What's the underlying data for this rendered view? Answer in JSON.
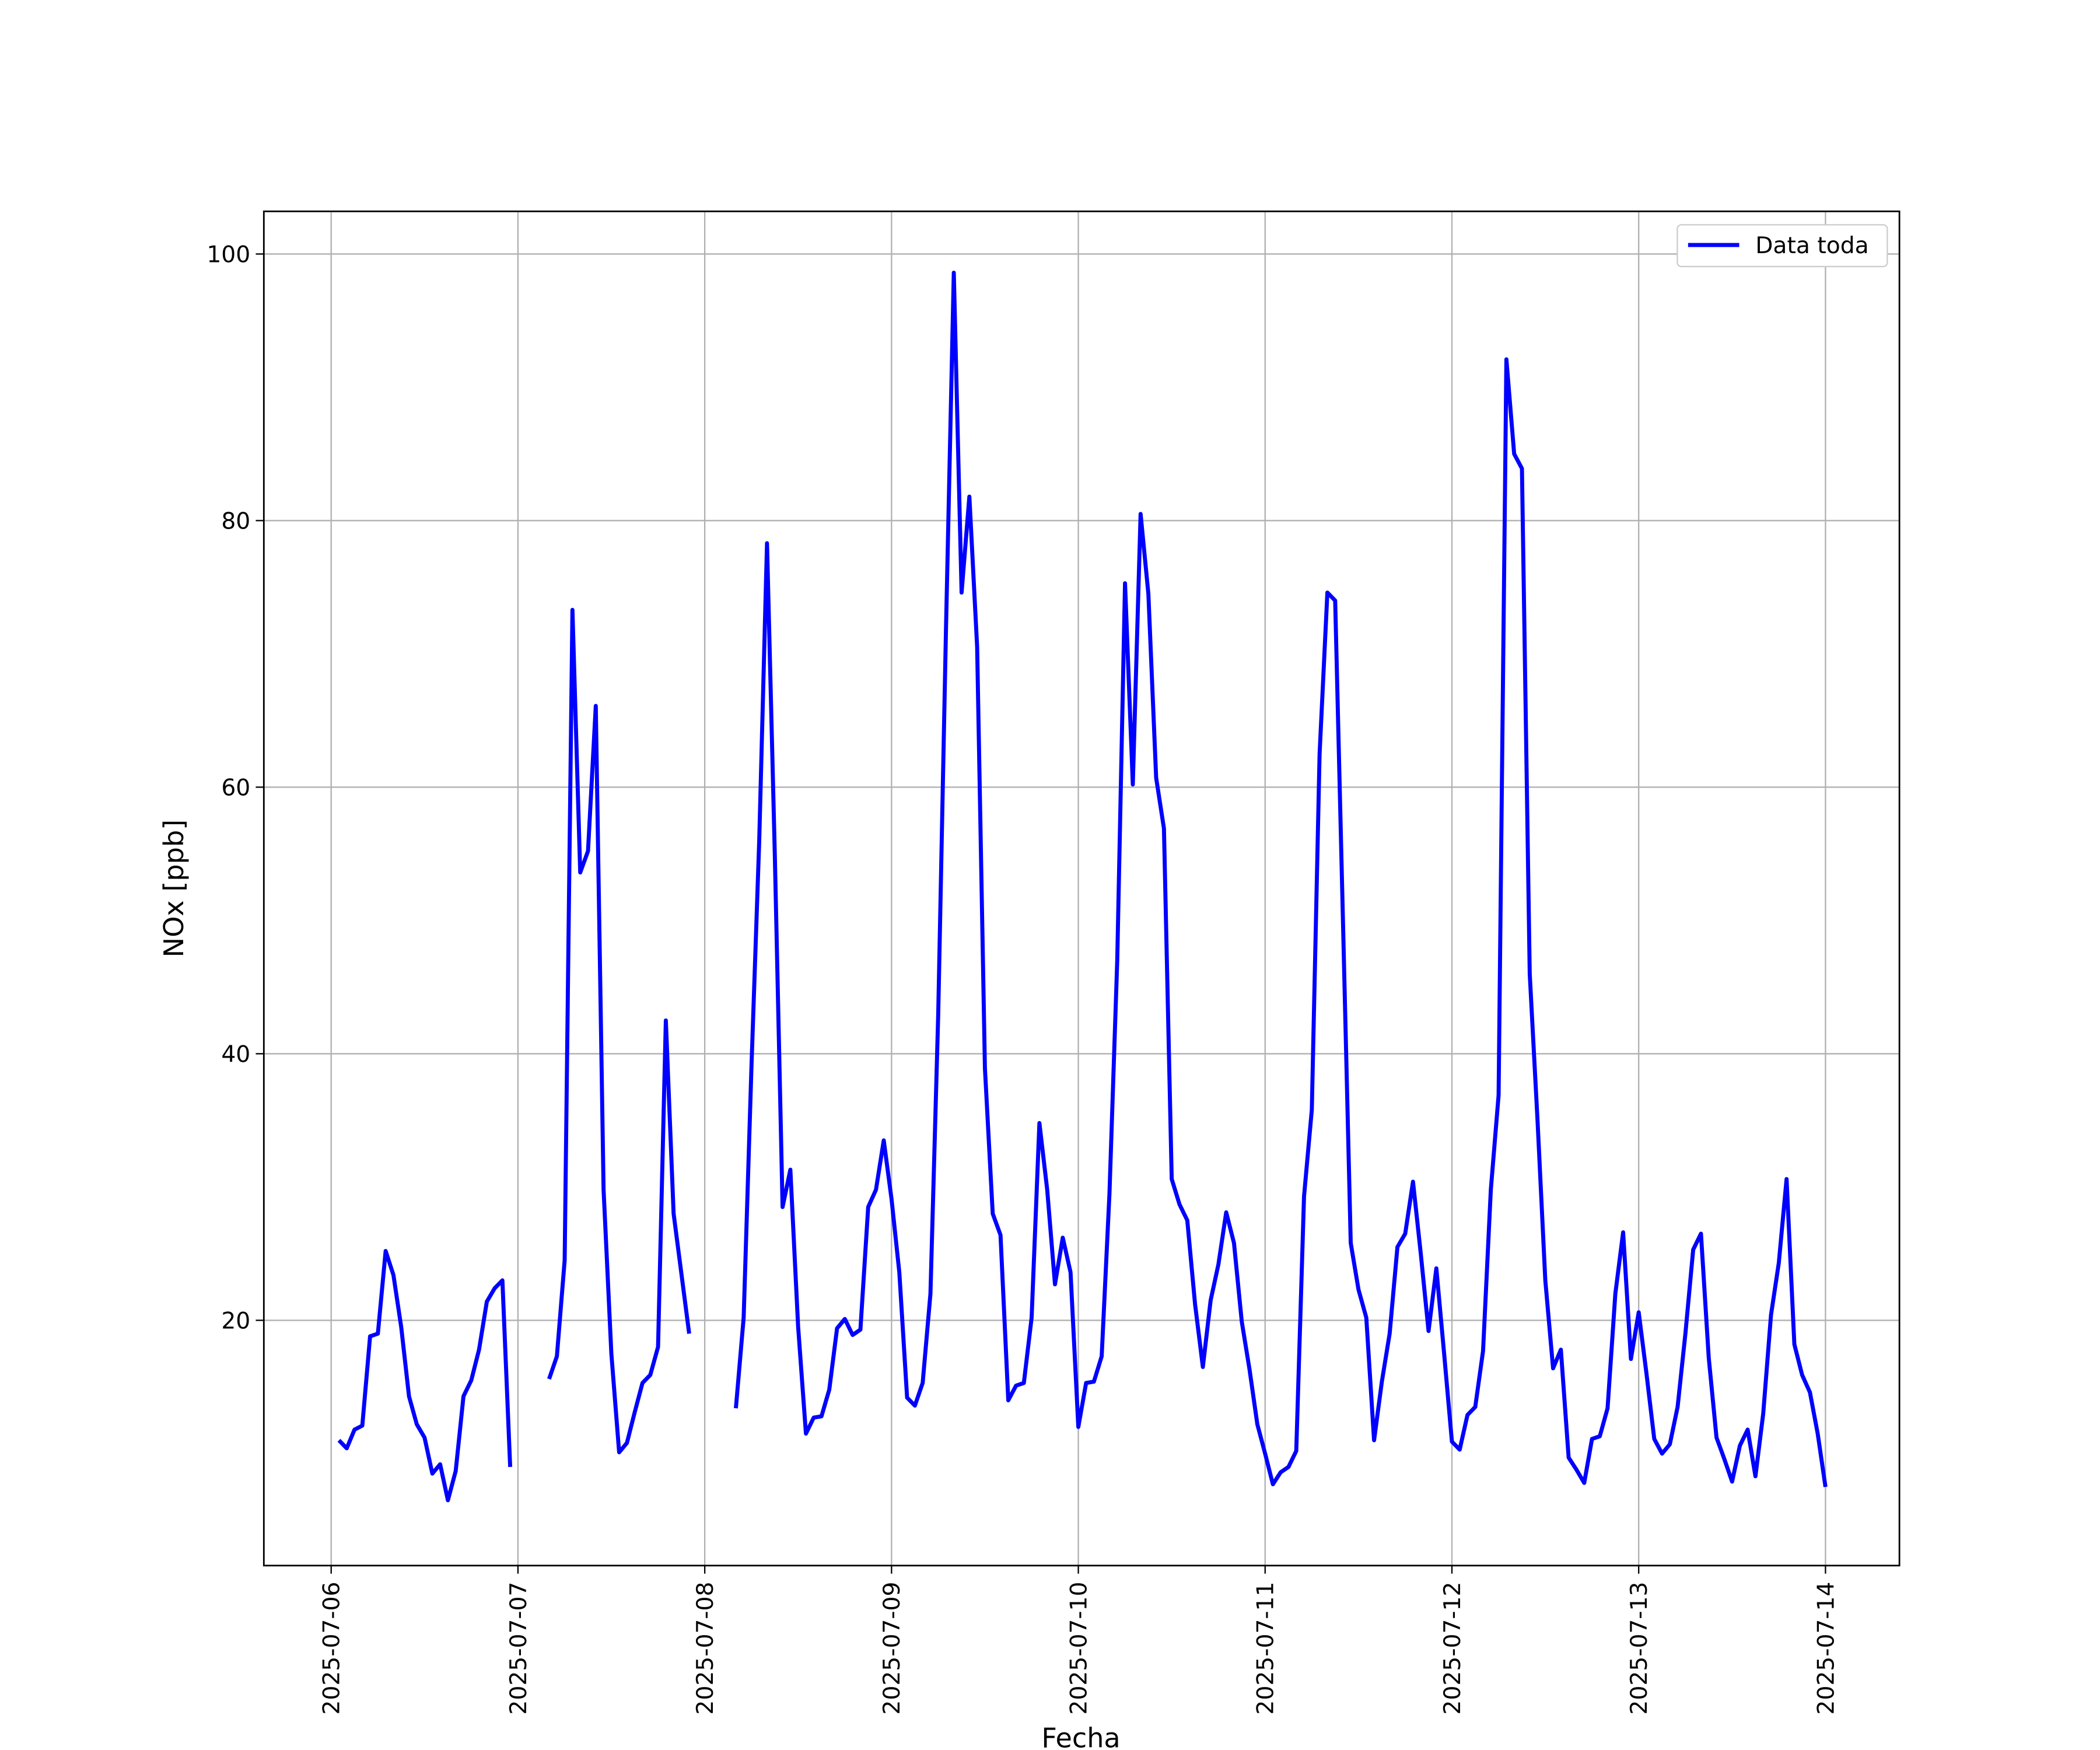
{
  "chart_data": {
    "type": "line",
    "xlabel": "Fecha",
    "ylabel": "NOx [ppb]",
    "x": [
      "2025-07-06 01:00",
      "2025-07-06 02:00",
      "2025-07-06 03:00",
      "2025-07-06 04:00",
      "2025-07-06 05:00",
      "2025-07-06 06:00",
      "2025-07-06 07:00",
      "2025-07-06 08:00",
      "2025-07-06 09:00",
      "2025-07-06 10:00",
      "2025-07-06 11:00",
      "2025-07-06 12:00",
      "2025-07-06 13:00",
      "2025-07-06 14:00",
      "2025-07-06 15:00",
      "2025-07-06 16:00",
      "2025-07-06 17:00",
      "2025-07-06 18:00",
      "2025-07-06 19:00",
      "2025-07-06 20:00",
      "2025-07-06 21:00",
      "2025-07-06 22:00",
      "2025-07-06 23:00",
      "2025-07-07 00:00",
      "2025-07-07 01:00",
      "2025-07-07 02:00",
      "2025-07-07 03:00",
      "2025-07-07 04:00",
      "2025-07-07 05:00",
      "2025-07-07 06:00",
      "2025-07-07 07:00",
      "2025-07-07 08:00",
      "2025-07-07 09:00",
      "2025-07-07 10:00",
      "2025-07-07 11:00",
      "2025-07-07 12:00",
      "2025-07-07 13:00",
      "2025-07-07 14:00",
      "2025-07-07 15:00",
      "2025-07-07 16:00",
      "2025-07-07 17:00",
      "2025-07-07 18:00",
      "2025-07-07 19:00",
      "2025-07-07 20:00",
      "2025-07-07 21:00",
      "2025-07-07 22:00",
      "2025-07-07 23:00",
      "2025-07-08 00:00",
      "2025-07-08 01:00",
      "2025-07-08 02:00",
      "2025-07-08 03:00",
      "2025-07-08 04:00",
      "2025-07-08 05:00",
      "2025-07-08 06:00",
      "2025-07-08 07:00",
      "2025-07-08 08:00",
      "2025-07-08 09:00",
      "2025-07-08 10:00",
      "2025-07-08 11:00",
      "2025-07-08 12:00",
      "2025-07-08 13:00",
      "2025-07-08 14:00",
      "2025-07-08 15:00",
      "2025-07-08 16:00",
      "2025-07-08 17:00",
      "2025-07-08 18:00",
      "2025-07-08 19:00",
      "2025-07-08 20:00",
      "2025-07-08 21:00",
      "2025-07-08 22:00",
      "2025-07-08 23:00",
      "2025-07-09 00:00",
      "2025-07-09 01:00",
      "2025-07-09 02:00",
      "2025-07-09 03:00",
      "2025-07-09 04:00",
      "2025-07-09 05:00",
      "2025-07-09 06:00",
      "2025-07-09 07:00",
      "2025-07-09 08:00",
      "2025-07-09 09:00",
      "2025-07-09 10:00",
      "2025-07-09 11:00",
      "2025-07-09 12:00",
      "2025-07-09 13:00",
      "2025-07-09 14:00",
      "2025-07-09 15:00",
      "2025-07-09 16:00",
      "2025-07-09 17:00",
      "2025-07-09 18:00",
      "2025-07-09 19:00",
      "2025-07-09 20:00",
      "2025-07-09 21:00",
      "2025-07-09 22:00",
      "2025-07-09 23:00",
      "2025-07-10 00:00",
      "2025-07-10 01:00",
      "2025-07-10 02:00",
      "2025-07-10 03:00",
      "2025-07-10 04:00",
      "2025-07-10 05:00",
      "2025-07-10 06:00",
      "2025-07-10 07:00",
      "2025-07-10 08:00",
      "2025-07-10 09:00",
      "2025-07-10 10:00",
      "2025-07-10 11:00",
      "2025-07-10 12:00",
      "2025-07-10 13:00",
      "2025-07-10 14:00",
      "2025-07-10 15:00",
      "2025-07-10 16:00",
      "2025-07-10 17:00",
      "2025-07-10 18:00",
      "2025-07-10 19:00",
      "2025-07-10 20:00",
      "2025-07-10 21:00",
      "2025-07-10 22:00",
      "2025-07-10 23:00",
      "2025-07-11 00:00",
      "2025-07-11 01:00",
      "2025-07-11 02:00",
      "2025-07-11 03:00",
      "2025-07-11 04:00",
      "2025-07-11 05:00",
      "2025-07-11 06:00",
      "2025-07-11 07:00",
      "2025-07-11 08:00",
      "2025-07-11 09:00",
      "2025-07-11 10:00",
      "2025-07-11 11:00",
      "2025-07-11 12:00",
      "2025-07-11 13:00",
      "2025-07-11 14:00",
      "2025-07-11 15:00",
      "2025-07-11 16:00",
      "2025-07-11 17:00",
      "2025-07-11 18:00",
      "2025-07-11 19:00",
      "2025-07-11 20:00",
      "2025-07-11 21:00",
      "2025-07-11 22:00",
      "2025-07-11 23:00",
      "2025-07-12 00:00",
      "2025-07-12 01:00",
      "2025-07-12 02:00",
      "2025-07-12 03:00",
      "2025-07-12 04:00",
      "2025-07-12 05:00",
      "2025-07-12 06:00",
      "2025-07-12 07:00",
      "2025-07-12 08:00",
      "2025-07-12 09:00",
      "2025-07-12 10:00",
      "2025-07-12 11:00",
      "2025-07-12 12:00",
      "2025-07-12 13:00",
      "2025-07-12 14:00",
      "2025-07-12 15:00",
      "2025-07-12 16:00",
      "2025-07-12 17:00",
      "2025-07-12 18:00",
      "2025-07-12 19:00",
      "2025-07-12 20:00",
      "2025-07-12 21:00",
      "2025-07-12 22:00",
      "2025-07-12 23:00",
      "2025-07-13 00:00",
      "2025-07-13 01:00",
      "2025-07-13 02:00",
      "2025-07-13 03:00",
      "2025-07-13 04:00",
      "2025-07-13 05:00",
      "2025-07-13 06:00",
      "2025-07-13 07:00",
      "2025-07-13 08:00",
      "2025-07-13 09:00",
      "2025-07-13 10:00",
      "2025-07-13 11:00",
      "2025-07-13 12:00",
      "2025-07-13 13:00",
      "2025-07-13 14:00",
      "2025-07-13 15:00",
      "2025-07-13 16:00",
      "2025-07-13 17:00",
      "2025-07-13 18:00",
      "2025-07-13 19:00",
      "2025-07-13 20:00",
      "2025-07-13 21:00",
      "2025-07-13 22:00",
      "2025-07-13 23:00",
      "2025-07-14 00:00"
    ],
    "series": [
      {
        "name": "Data toda",
        "color": "#0000ff",
        "values": [
          11,
          10.4,
          11.8,
          12.1,
          18.8,
          19,
          25.2,
          23.4,
          19.5,
          14.3,
          12.2,
          11.2,
          8.5,
          9.2,
          6.5,
          8.7,
          14.3,
          15.5,
          17.8,
          21.4,
          22.4,
          23,
          9,
          null,
          null,
          null,
          null,
          15.6,
          17.3,
          24.5,
          73.3,
          53.6,
          55.2,
          66.1,
          29.8,
          17.5,
          10.1,
          10.8,
          13.1,
          15.3,
          15.9,
          18,
          42.5,
          28,
          23.5,
          19,
          null,
          null,
          null,
          null,
          null,
          13.4,
          20.2,
          39,
          56,
          78.3,
          55,
          28.5,
          31.3,
          19.5,
          11.5,
          12.7,
          12.8,
          14.8,
          19.4,
          20.1,
          18.9,
          19.3,
          28.5,
          29.8,
          33.5,
          29.1,
          23.6,
          14.2,
          13.6,
          15.3,
          22,
          43,
          72,
          98.6,
          74.6,
          81.8,
          70.5,
          38.9,
          28,
          26.4,
          14,
          15.1,
          15.3,
          20.2,
          34.8,
          29.8,
          22.7,
          26.2,
          23.6,
          12,
          15.3,
          15.4,
          17.3,
          29.5,
          47,
          75.3,
          60.2,
          80.5,
          74.5,
          60.7,
          56.9,
          30.6,
          28.7,
          27.5,
          21.2,
          16.5,
          21.5,
          24.2,
          28.1,
          25.8,
          19.9,
          16.3,
          12.2,
          10,
          7.7,
          8.6,
          9,
          10.2,
          29.3,
          35.8,
          62.5,
          74.6,
          74,
          50,
          25.8,
          22.3,
          20.2,
          11,
          15.4,
          19,
          25.5,
          26.5,
          30.4,
          25,
          19.2,
          23.9,
          17.5,
          10.9,
          10.3,
          12.9,
          13.5,
          17.7,
          29.8,
          36.9,
          92.1,
          85,
          83.9,
          46,
          35,
          23,
          16.4,
          17.8,
          9.7,
          8.8,
          7.8,
          11.1,
          11.3,
          13.4,
          22,
          26.6,
          17.1,
          20.6,
          16,
          11.1,
          10,
          10.7,
          13.5,
          19,
          25.3,
          26.5,
          17.2,
          11.2,
          9.6,
          7.9,
          10.6,
          11.8,
          8.3,
          13,
          20.4,
          24.3,
          30.6,
          18.2,
          15.9,
          14.6,
          11.5,
          7.5
        ]
      }
    ],
    "xlim": [
      "2025-07-05 15:21",
      "2025-07-14 09:30"
    ],
    "xticks": [
      "2025-07-06",
      "2025-07-07",
      "2025-07-08",
      "2025-07-09",
      "2025-07-10",
      "2025-07-11",
      "2025-07-12",
      "2025-07-13",
      "2025-07-14"
    ],
    "ylim": [
      1.6,
      103.2
    ],
    "yticks": [
      20,
      40,
      60,
      80,
      100
    ],
    "grid": true,
    "legend": "upper right"
  }
}
